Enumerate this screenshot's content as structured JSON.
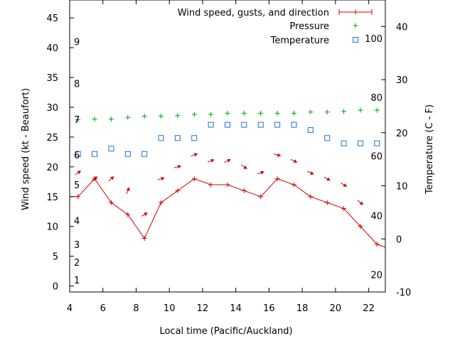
{
  "chart_data": {
    "type": "line",
    "xlabel": "Local time (Pacific/Auckland)",
    "ylabel": "Wind speed (kt - Beaufort)",
    "y2label": "Temperature (C - F)",
    "xlim": [
      4,
      23
    ],
    "ylim": [
      -1,
      48
    ],
    "y2lim": [
      -10,
      45
    ],
    "grid": false,
    "legend_position": "top-right",
    "x_ticks": [
      "4",
      "6",
      "8",
      "10",
      "12",
      "14",
      "16",
      "18",
      "20",
      "22"
    ],
    "y_ticks": [
      "0",
      "5",
      "10",
      "15",
      "20",
      "25",
      "30",
      "35",
      "40",
      "45"
    ],
    "y2_ticks": [
      "-10",
      "0",
      "10",
      "20",
      "30",
      "40"
    ],
    "beaufort_labels": [
      {
        "text": "1",
        "y": 1
      },
      {
        "text": "2",
        "y": 4
      },
      {
        "text": "3",
        "y": 7
      },
      {
        "text": "4",
        "y": 11
      },
      {
        "text": "5",
        "y": 17
      },
      {
        "text": "6",
        "y": 22
      },
      {
        "text": "7",
        "y": 28
      },
      {
        "text": "8",
        "y": 34
      },
      {
        "text": "9",
        "y": 41
      }
    ],
    "fahrenheit_labels": [
      {
        "text": "20",
        "y2": -6.7
      },
      {
        "text": "40",
        "y2": 4.4
      },
      {
        "text": "60",
        "y2": 15.6
      },
      {
        "text": "80",
        "y2": 26.7
      },
      {
        "text": "100",
        "y2": 37.8
      }
    ],
    "series": [
      {
        "name": "Wind speed, gusts, and direction",
        "color": "#cc0000",
        "axis": "y",
        "x": [
          4,
          4.5,
          5.5,
          6.5,
          7.5,
          8.5,
          9.5,
          10.5,
          11.5,
          12.5,
          13.5,
          14.5,
          15.5,
          16.5,
          17.5,
          18.5,
          19.5,
          20.5,
          21.5,
          22.5,
          23
        ],
        "values": [
          15,
          15,
          18,
          14,
          12,
          8,
          14,
          16,
          18,
          17,
          17,
          16,
          15,
          18,
          17,
          15,
          14,
          13,
          10,
          7,
          6.5
        ]
      },
      {
        "name": "Wind direction arrows",
        "color": "#cc0000",
        "axis": "y",
        "x": [
          4.5,
          5.5,
          6.5,
          7.5,
          8.5,
          9.5,
          10.5,
          11.5,
          12.5,
          13.5,
          14.5,
          15.5,
          16.5,
          17.5,
          18.5,
          19.5,
          20.5,
          21.5
        ],
        "values": [
          19,
          18,
          18,
          16,
          12,
          18,
          20,
          22,
          21,
          21,
          20,
          19,
          22,
          21,
          19,
          18,
          17,
          14
        ],
        "angles_deg": [
          35,
          40,
          40,
          65,
          30,
          15,
          15,
          20,
          20,
          25,
          -35,
          20,
          -15,
          -25,
          -25,
          -30,
          -30,
          -40
        ]
      },
      {
        "name": "Pressure",
        "color": "#00a000",
        "axis": "y",
        "x": [
          4.5,
          5.5,
          6.5,
          7.5,
          8.5,
          9.5,
          10.5,
          11.5,
          12.5,
          13.5,
          14.5,
          15.5,
          16.5,
          17.5,
          18.5,
          19.5,
          20.5,
          21.5,
          22.5
        ],
        "values": [
          27.9,
          28,
          28,
          28.3,
          28.5,
          28.5,
          28.6,
          28.8,
          28.8,
          29,
          29,
          29,
          29,
          29,
          29.2,
          29.2,
          29.3,
          29.5,
          29.5
        ]
      },
      {
        "name": "Temperature",
        "color": "#1a75c8",
        "axis": "y2",
        "x": [
          4.5,
          5.5,
          6.5,
          7.5,
          8.5,
          9.5,
          10.5,
          11.5,
          12.5,
          13.5,
          14.5,
          15.5,
          16.5,
          17.5,
          18.5,
          19.5,
          20.5,
          21.5,
          22.5
        ],
        "values": [
          16,
          16,
          17,
          16,
          16,
          19,
          19,
          19,
          21.5,
          21.5,
          21.5,
          21.5,
          21.5,
          21.5,
          20.5,
          19,
          18,
          18,
          18
        ]
      }
    ]
  }
}
